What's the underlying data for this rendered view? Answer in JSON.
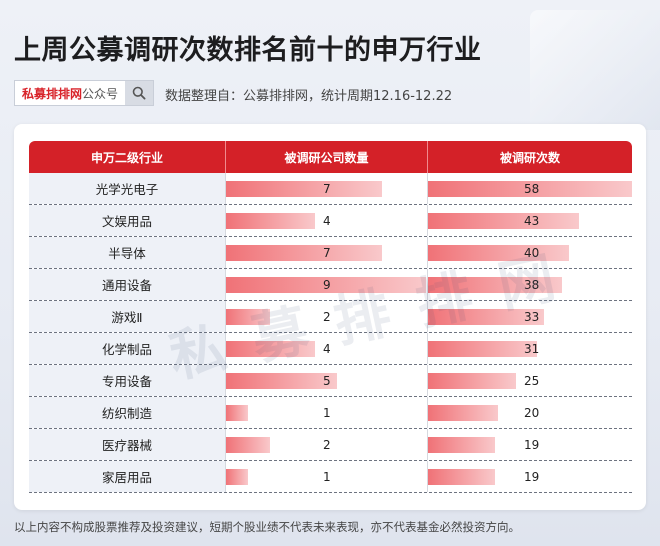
{
  "title": "上周公募调研次数排名前十的申万行业",
  "brand": {
    "name_red": "私募排排网",
    "name_gray": "公众号",
    "search_icon": "search-icon"
  },
  "source_note": "数据整理自：公募排排网，统计周期12.16-12.22",
  "watermark": "私募排排网",
  "disclaimer": "以上内容不构成股票推荐及投资建议，短期个股业绩不代表未来表现，亦不代表基金必然投资方向。",
  "colors": {
    "header_red": "#d42128",
    "bar_start": "#f07277",
    "bar_end": "#f9c9cb"
  },
  "chart_data": {
    "type": "table",
    "columns": [
      "申万二级行业",
      "被调研公司数量",
      "被调研次数"
    ],
    "max_companies": 9,
    "max_visits": 58,
    "rows": [
      {
        "industry": "光学光电子",
        "companies": 7,
        "visits": 58
      },
      {
        "industry": "文娱用品",
        "companies": 4,
        "visits": 43
      },
      {
        "industry": "半导体",
        "companies": 7,
        "visits": 40
      },
      {
        "industry": "通用设备",
        "companies": 9,
        "visits": 38
      },
      {
        "industry": "游戏Ⅱ",
        "companies": 2,
        "visits": 33
      },
      {
        "industry": "化学制品",
        "companies": 4,
        "visits": 31
      },
      {
        "industry": "专用设备",
        "companies": 5,
        "visits": 25
      },
      {
        "industry": "纺织制造",
        "companies": 1,
        "visits": 20
      },
      {
        "industry": "医疗器械",
        "companies": 2,
        "visits": 19
      },
      {
        "industry": "家居用品",
        "companies": 1,
        "visits": 19
      }
    ]
  }
}
